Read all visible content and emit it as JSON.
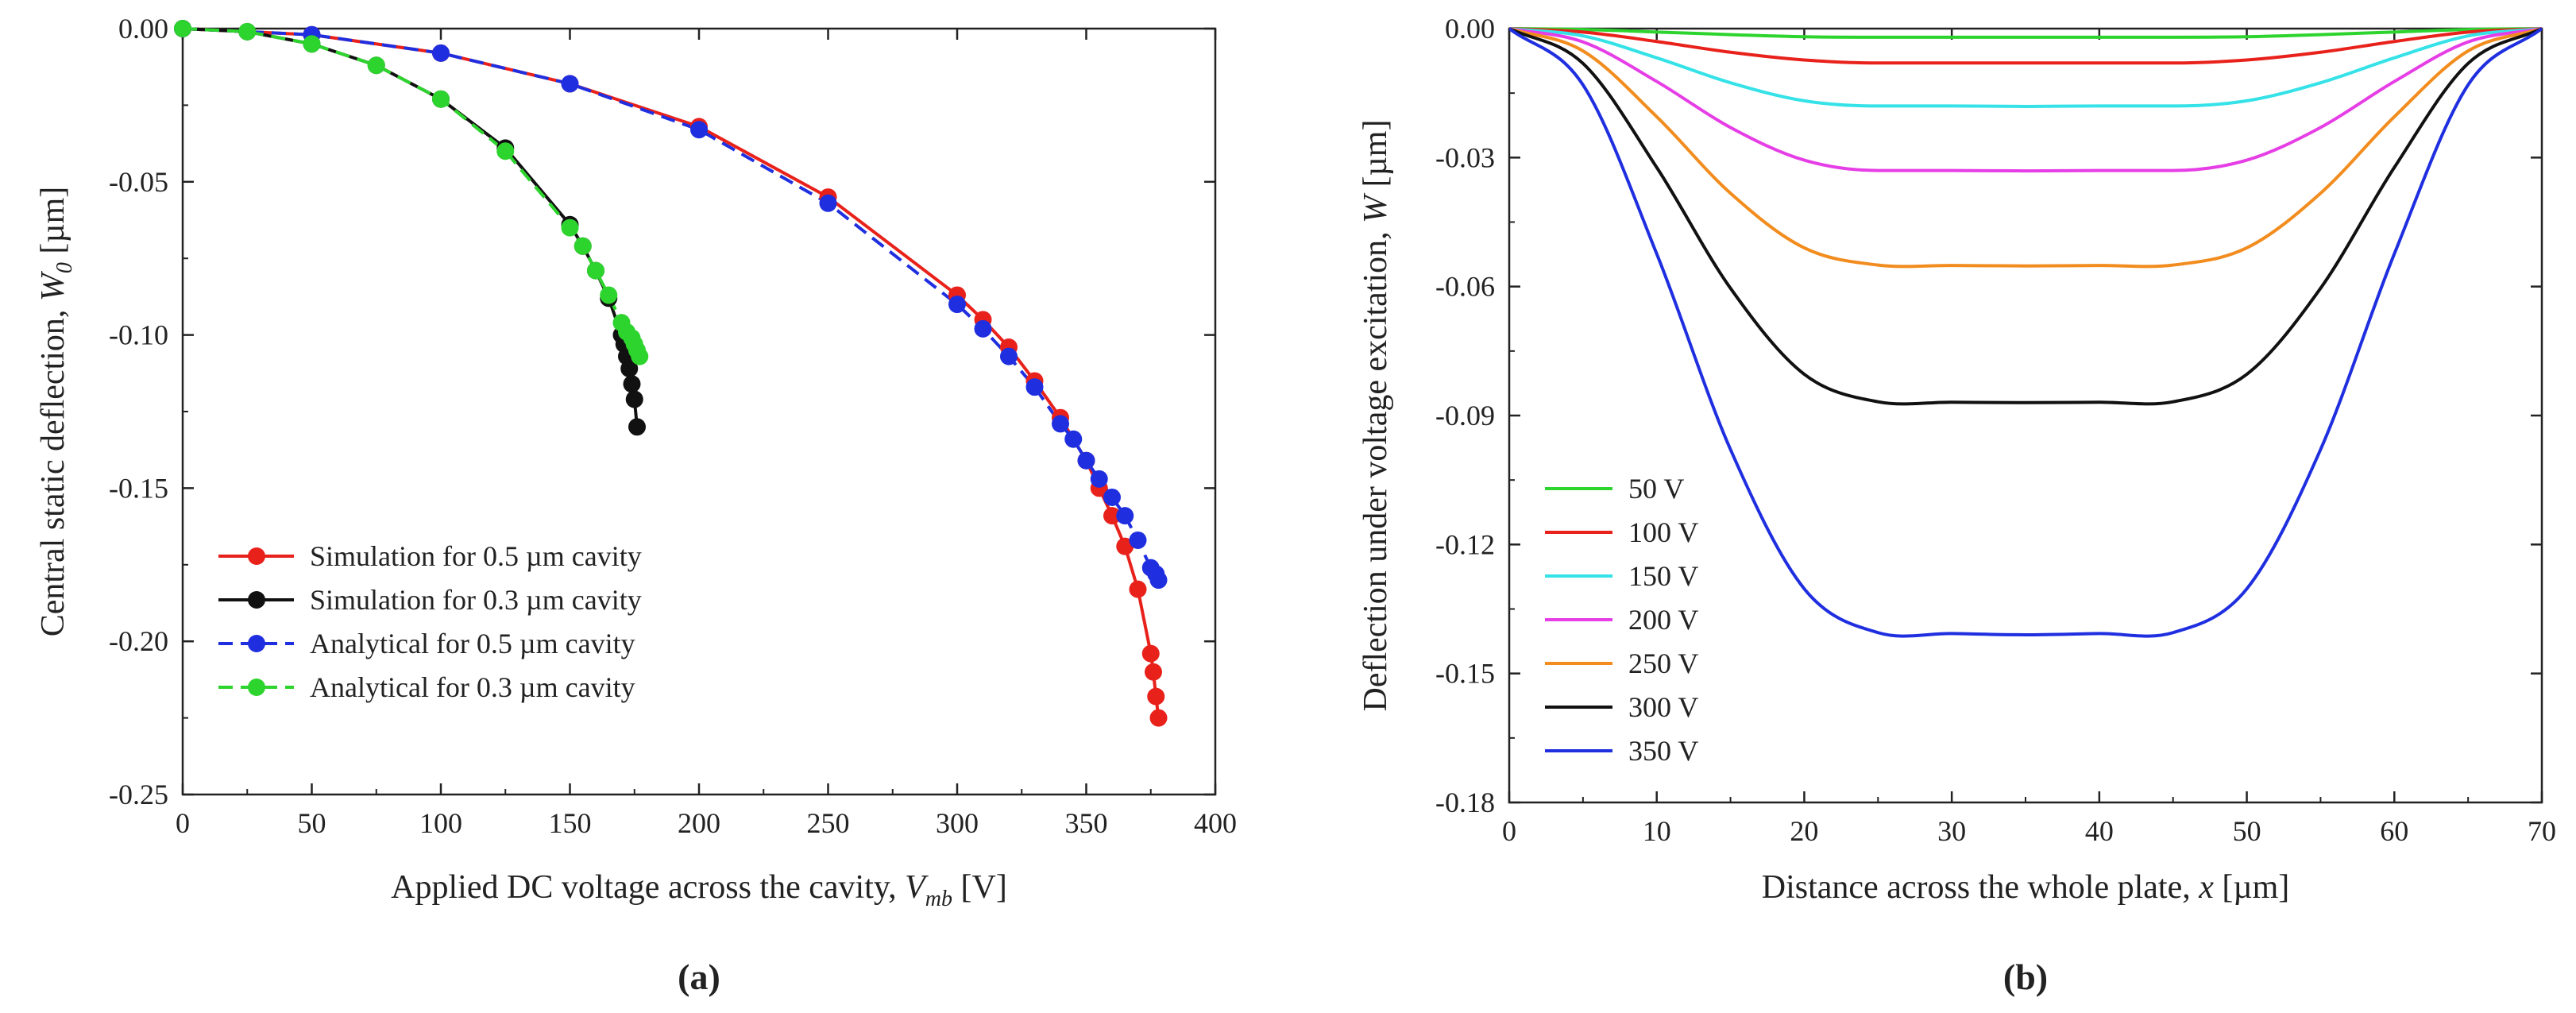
{
  "chart_data": [
    {
      "type": "line",
      "panel_label": "(a)",
      "xlabel": "Applied DC voltage across the cavity, ",
      "xlabel_var": "V",
      "xlabel_sub": "mb",
      "xlabel_unit": "  [V]",
      "ylabel": "Central static deflection, ",
      "ylabel_var": "W",
      "ylabel_sub": "0",
      "ylabel_unit": " [µm]",
      "xlim": [
        0,
        400
      ],
      "ylim": [
        -0.25,
        0.0
      ],
      "x_ticks": [
        "0",
        "50",
        "100",
        "150",
        "200",
        "250",
        "300",
        "350",
        "400"
      ],
      "y_ticks": [
        "0.00",
        "-0.05",
        "-0.10",
        "-0.15",
        "-0.20",
        "-0.25"
      ],
      "legend_position": "bottom-left",
      "series": [
        {
          "name": "Simulation for 0.5 µm cavity",
          "color": "#e8211b",
          "dash": "solid",
          "x": [
            0,
            50,
            100,
            150,
            200,
            250,
            300,
            310,
            320,
            330,
            340,
            350,
            355,
            360,
            365,
            370,
            375,
            376,
            377,
            378
          ],
          "y": [
            0,
            -0.002,
            -0.008,
            -0.018,
            -0.032,
            -0.055,
            -0.087,
            -0.095,
            -0.104,
            -0.115,
            -0.127,
            -0.141,
            -0.15,
            -0.159,
            -0.169,
            -0.183,
            -0.204,
            -0.21,
            -0.218,
            -0.225
          ]
        },
        {
          "name": "Simulation for 0.3 µm cavity",
          "color": "#111111",
          "dash": "solid",
          "x": [
            0,
            25,
            50,
            75,
            100,
            125,
            150,
            155,
            160,
            165,
            170,
            171,
            172,
            173,
            174,
            175,
            176
          ],
          "y": [
            0,
            -0.001,
            -0.005,
            -0.012,
            -0.023,
            -0.039,
            -0.064,
            -0.071,
            -0.079,
            -0.088,
            -0.1,
            -0.103,
            -0.107,
            -0.111,
            -0.116,
            -0.121,
            -0.13
          ]
        },
        {
          "name": "Analytical for 0.5 µm cavity",
          "color": "#1f2fe0",
          "dash": "dashed",
          "x": [
            0,
            50,
            100,
            150,
            200,
            250,
            300,
            310,
            320,
            330,
            340,
            345,
            350,
            355,
            360,
            365,
            370,
            375,
            377,
            378
          ],
          "y": [
            0,
            -0.002,
            -0.008,
            -0.018,
            -0.033,
            -0.057,
            -0.09,
            -0.098,
            -0.107,
            -0.117,
            -0.129,
            -0.134,
            -0.141,
            -0.147,
            -0.153,
            -0.159,
            -0.167,
            -0.176,
            -0.178,
            -0.18
          ]
        },
        {
          "name": "Analytical for 0.3 µm cavity",
          "color": "#2ed42e",
          "dash": "dashed",
          "x": [
            0,
            25,
            50,
            75,
            100,
            125,
            150,
            155,
            160,
            165,
            170,
            172,
            174,
            175,
            176,
            177
          ],
          "y": [
            0,
            -0.001,
            -0.005,
            -0.012,
            -0.023,
            -0.04,
            -0.065,
            -0.071,
            -0.079,
            -0.087,
            -0.096,
            -0.099,
            -0.101,
            -0.103,
            -0.105,
            -0.107
          ]
        }
      ]
    },
    {
      "type": "line",
      "panel_label": "(b)",
      "xlabel": "Distance across the whole plate, ",
      "xlabel_var": "x",
      "xlabel_unit": " [µm]",
      "ylabel": "Deflection under voltage excitation, ",
      "ylabel_var": "W",
      "ylabel_unit": " [µm]",
      "xlim": [
        0,
        70
      ],
      "ylim": [
        -0.18,
        0.0
      ],
      "x_ticks": [
        "0",
        "10",
        "20",
        "30",
        "40",
        "50",
        "60",
        "70"
      ],
      "y_ticks": [
        "0.00",
        "-0.03",
        "-0.06",
        "-0.09",
        "-0.12",
        "-0.15",
        "-0.18"
      ],
      "legend_position": "bottom-left",
      "profile_x": [
        0,
        5,
        10,
        15,
        20,
        25,
        30,
        35,
        40,
        45,
        50,
        55,
        60,
        65,
        70
      ],
      "series": [
        {
          "name": "50 V",
          "color": "#2ed42e",
          "y": [
            0,
            -0.0002,
            -0.0008,
            -0.0014,
            -0.0019,
            -0.002,
            -0.002,
            -0.002,
            -0.002,
            -0.002,
            -0.0019,
            -0.0014,
            -0.0008,
            -0.0002,
            0
          ]
        },
        {
          "name": "100 V",
          "color": "#e8211b",
          "y": [
            0,
            -0.0008,
            -0.003,
            -0.0055,
            -0.0073,
            -0.008,
            -0.008,
            -0.008,
            -0.008,
            -0.008,
            -0.0073,
            -0.0055,
            -0.003,
            -0.0008,
            0
          ]
        },
        {
          "name": "150 V",
          "color": "#35e2e8",
          "y": [
            0,
            -0.0017,
            -0.0068,
            -0.0126,
            -0.0168,
            -0.018,
            -0.018,
            -0.0181,
            -0.018,
            -0.018,
            -0.0168,
            -0.0126,
            -0.0068,
            -0.0017,
            0
          ]
        },
        {
          "name": "200 V",
          "color": "#e63ee6",
          "y": [
            0,
            -0.0031,
            -0.0123,
            -0.023,
            -0.0306,
            -0.033,
            -0.033,
            -0.0331,
            -0.033,
            -0.033,
            -0.0306,
            -0.023,
            -0.0123,
            -0.0031,
            0
          ]
        },
        {
          "name": "250 V",
          "color": "#f28c1e",
          "y": [
            0,
            -0.0052,
            -0.0205,
            -0.0383,
            -0.051,
            -0.055,
            -0.0551,
            -0.0552,
            -0.0551,
            -0.055,
            -0.051,
            -0.0383,
            -0.0205,
            -0.0052,
            0
          ]
        },
        {
          "name": "300 V",
          "color": "#111111",
          "y": [
            0,
            -0.0081,
            -0.0323,
            -0.0604,
            -0.0804,
            -0.0868,
            -0.0869,
            -0.087,
            -0.0869,
            -0.0868,
            -0.0804,
            -0.0604,
            -0.0323,
            -0.0081,
            0
          ]
        },
        {
          "name": "350 V",
          "color": "#1f2fe0",
          "y": [
            0,
            -0.0131,
            -0.0524,
            -0.0979,
            -0.1303,
            -0.1405,
            -0.1407,
            -0.141,
            -0.1407,
            -0.1405,
            -0.1303,
            -0.0979,
            -0.0524,
            -0.0131,
            0
          ]
        }
      ]
    }
  ]
}
